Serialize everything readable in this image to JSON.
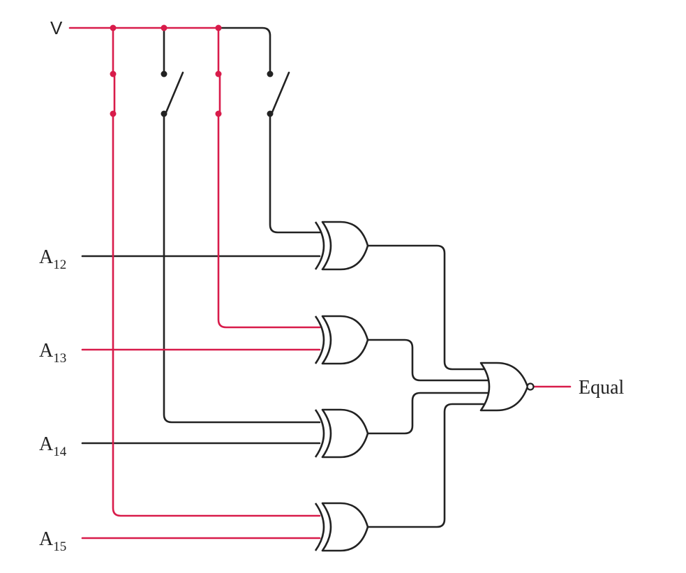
{
  "supply": {
    "label": "V"
  },
  "inputs": [
    {
      "base": "A",
      "sub": "12"
    },
    {
      "base": "A",
      "sub": "13"
    },
    {
      "base": "A",
      "sub": "14"
    },
    {
      "base": "A",
      "sub": "15"
    }
  ],
  "output": {
    "label": "Equal"
  },
  "colors": {
    "active": "#d81b4a",
    "wire": "#222222"
  },
  "switches": [
    {
      "state": "closed"
    },
    {
      "state": "open"
    },
    {
      "state": "closed"
    },
    {
      "state": "open"
    }
  ]
}
